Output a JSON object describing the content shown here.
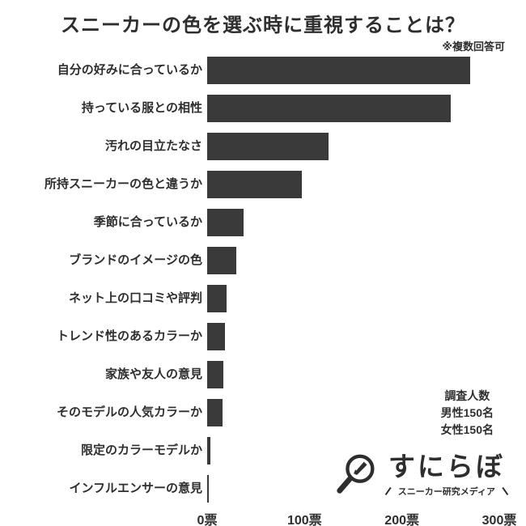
{
  "title": "スニーカーの色を選ぶ時に重視することは？",
  "note": "※複数回答可",
  "chart_data": {
    "type": "bar",
    "orientation": "horizontal",
    "title": "スニーカーの色を選ぶ時に重視することは？",
    "categories": [
      "自分の好みに合っているか",
      "持っている服との相性",
      "汚れの目立たなさ",
      "所持スニーカーの色と違うか",
      "季節に合っているか",
      "ブランドのイメージの色",
      "ネット上の口コミや評判",
      "トレンド性のあるカラーか",
      "家族や友人の意見",
      "そのモデルの人気カラーか",
      "限定のカラーモデルか",
      "インフルエンサーの意見"
    ],
    "values": [
      270,
      250,
      125,
      97,
      37,
      30,
      20,
      18,
      17,
      16,
      3,
      2
    ],
    "x_ticks": [
      "0票",
      "100票",
      "200票",
      "300票"
    ],
    "xlim": [
      0,
      300
    ],
    "unit": "票",
    "bar_color": "#3a3a3a",
    "grid": false,
    "legend": "none"
  },
  "survey_info": {
    "line1": "調査人数",
    "line2": "男性150名",
    "line3": "女性150名"
  },
  "logo": {
    "name": "すにらぼ",
    "subtitle": "スニーカー研究メディア"
  },
  "colors": {
    "bar": "#3a3a3a",
    "text": "#2e2e2e",
    "background": "#ffffff"
  }
}
